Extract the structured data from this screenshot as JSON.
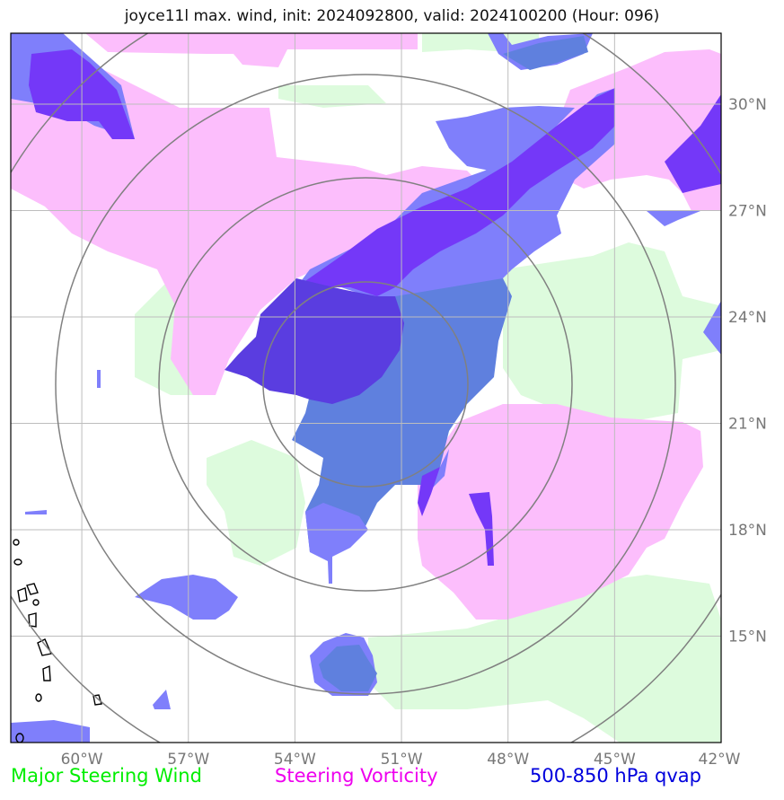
{
  "header": {
    "title": "joyce11l max. wind, init: 2024092800, valid: 2024100200 (Hour: 096)"
  },
  "map": {
    "lon_range": [
      -62,
      -42
    ],
    "lat_range": [
      12,
      32
    ],
    "lon_ticks": [
      "60°W",
      "57°W",
      "54°W",
      "51°W",
      "48°W",
      "45°W",
      "42°W"
    ],
    "lat_ticks": [
      "30°N",
      "27°N",
      "24°N",
      "21°N",
      "18°N",
      "15°N"
    ],
    "range_rings": 4,
    "colors": {
      "steering_wind": "#ddfbdd",
      "steering_vorticity": "#fcbefc",
      "qvap_light": "#7f7ffb",
      "qvap_dark": "#5a3de0",
      "qvap_mid": "#5f80de",
      "ring": "#808080",
      "grid": "#bdbdbd"
    }
  },
  "legend": {
    "items": [
      {
        "label": "Major Steering Wind",
        "color": "#00ee00"
      },
      {
        "label": "Steering Vorticity",
        "color": "#ee00ee"
      },
      {
        "label": "500-850 hPa qvap",
        "color": "#0000dd"
      }
    ]
  }
}
